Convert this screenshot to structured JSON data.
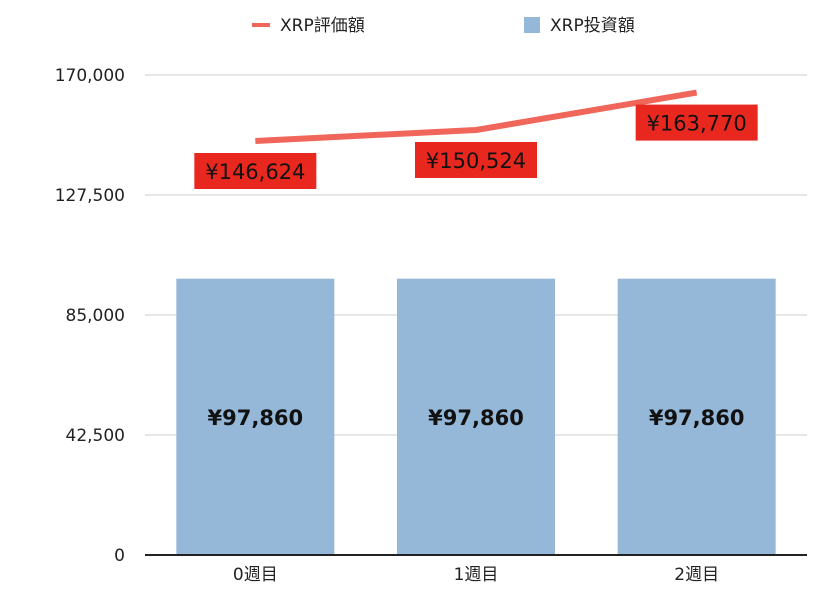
{
  "chart_data": {
    "type": "bar",
    "categories": [
      "0週目",
      "1週目",
      "2週目"
    ],
    "series": [
      {
        "name": "XRP投資額",
        "kind": "bar",
        "color": "#95b8d9",
        "values": [
          97860,
          97860,
          97860
        ],
        "labels": [
          "¥97,860",
          "¥97,860",
          "¥97,860"
        ]
      },
      {
        "name": "XRP評価額",
        "kind": "line",
        "color": "#f0665a",
        "label_bg": "#e8281e",
        "values": [
          146624,
          150524,
          163770
        ],
        "labels": [
          "¥146,624",
          "¥150,524",
          "¥163,770"
        ]
      }
    ],
    "ylim": [
      0,
      170000
    ],
    "yticks": [
      0,
      42500,
      85000,
      127500,
      170000
    ],
    "ytick_labels": [
      "0",
      "42,500",
      "85,000",
      "127,500",
      "170,000"
    ],
    "grid": true,
    "legend_position": "top",
    "title": "",
    "xlabel": "",
    "ylabel": ""
  }
}
